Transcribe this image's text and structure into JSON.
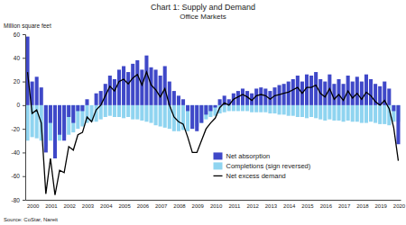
{
  "chart_data": {
    "type": "bar",
    "title": "Chart 1: Supply and Demand",
    "subtitle": "Office Markets",
    "y_label": "Million square feet",
    "source": "Source: CoStar, Nareit",
    "categories": [
      "2000",
      null,
      null,
      null,
      "2001",
      null,
      null,
      null,
      "2002",
      null,
      null,
      null,
      "2003",
      null,
      null,
      null,
      "2004",
      null,
      null,
      null,
      "2005",
      null,
      null,
      null,
      "2006",
      null,
      null,
      null,
      "2007",
      null,
      null,
      null,
      "2008",
      null,
      null,
      null,
      "2009",
      null,
      null,
      null,
      "2010",
      null,
      null,
      null,
      "2011",
      null,
      null,
      null,
      "2012",
      null,
      null,
      null,
      "2013",
      null,
      null,
      null,
      "2014",
      null,
      null,
      null,
      "2015",
      null,
      null,
      null,
      "2016",
      null,
      null,
      null,
      "2017",
      null,
      null,
      null,
      "2018",
      null,
      null,
      null,
      "2019",
      null,
      null,
      null,
      "2020",
      null
    ],
    "series": [
      {
        "name": "Net absorption",
        "type": "bar",
        "color": "#3f48c8",
        "values": [
          58,
          20,
          24,
          15,
          -40,
          -15,
          -45,
          -25,
          -30,
          -10,
          -15,
          -5,
          -5,
          5,
          0,
          10,
          12,
          18,
          25,
          22,
          30,
          33,
          28,
          35,
          38,
          30,
          42,
          32,
          30,
          25,
          33,
          20,
          12,
          8,
          5,
          -5,
          -20,
          -22,
          -15,
          -8,
          -5,
          -2,
          5,
          8,
          5,
          10,
          12,
          14,
          12,
          10,
          14,
          15,
          14,
          12,
          15,
          17,
          18,
          20,
          22,
          25,
          20,
          26,
          25,
          28,
          22,
          20,
          26,
          18,
          22,
          18,
          25,
          20,
          24,
          20,
          26,
          22,
          18,
          16,
          20,
          14,
          -5,
          -33
        ]
      },
      {
        "name": "Completions (sign reversed)",
        "type": "bar",
        "color": "#8fd4f0",
        "values": [
          -30,
          -27,
          -28,
          -30,
          -35,
          -30,
          -31,
          -30,
          -27,
          -25,
          -23,
          -20,
          -18,
          -15,
          -14,
          -14,
          -12,
          -10,
          -9,
          -10,
          -10,
          -11,
          -10,
          -12,
          -12,
          -13,
          -14,
          -15,
          -17,
          -18,
          -19,
          -20,
          -22,
          -22,
          -21,
          -22,
          -20,
          -18,
          -15,
          -12,
          -10,
          -9,
          -7,
          -6,
          -5,
          -5,
          -5,
          -5,
          -5,
          -6,
          -6,
          -6,
          -6,
          -7,
          -7,
          -8,
          -8,
          -9,
          -9,
          -10,
          -10,
          -11,
          -10,
          -11,
          -12,
          -13,
          -12,
          -13,
          -13,
          -14,
          -13,
          -14,
          -14,
          -15,
          -15,
          -14,
          -15,
          -16,
          -16,
          -17,
          -14,
          -14
        ]
      },
      {
        "name": "Net excess demand",
        "type": "line",
        "color": "#000000",
        "values": [
          28,
          -7,
          -4,
          -15,
          -75,
          -45,
          -76,
          -55,
          -57,
          -35,
          -38,
          -25,
          -23,
          -10,
          -14,
          -4,
          0,
          8,
          16,
          12,
          20,
          22,
          18,
          23,
          26,
          17,
          28,
          17,
          13,
          7,
          14,
          0,
          -10,
          -14,
          -16,
          -27,
          -40,
          -40,
          -30,
          -20,
          -15,
          -11,
          -2,
          2,
          0,
          5,
          7,
          9,
          7,
          4,
          8,
          9,
          8,
          5,
          8,
          9,
          10,
          11,
          13,
          15,
          10,
          15,
          15,
          17,
          10,
          7,
          14,
          5,
          9,
          4,
          12,
          6,
          10,
          5,
          11,
          8,
          3,
          0,
          4,
          -3,
          -19,
          -47
        ]
      }
    ],
    "ylim": [
      -80,
      60
    ],
    "yticks": [
      -80,
      -60,
      -40,
      -20,
      0,
      20,
      40,
      60
    ],
    "grid": false,
    "legend": "bottom"
  }
}
